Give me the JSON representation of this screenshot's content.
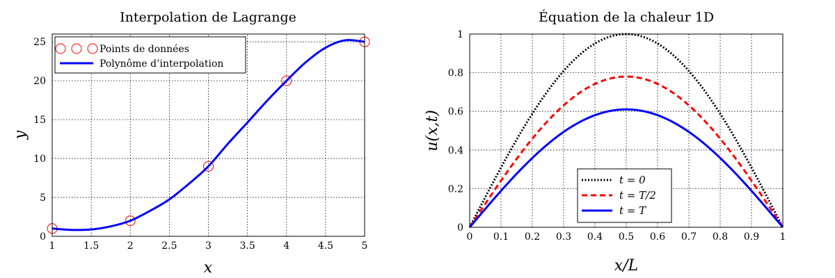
{
  "chart_data": [
    {
      "type": "line",
      "title": "Interpolation de Lagrange",
      "xlabel": "x",
      "ylabel": "y",
      "xlim": [
        1,
        5
      ],
      "ylim": [
        0,
        26
      ],
      "xticks": [
        "1",
        "1.5",
        "2",
        "2.5",
        "3",
        "3.5",
        "4",
        "4.5",
        "5"
      ],
      "yticks": [
        "0",
        "5",
        "10",
        "15",
        "20",
        "25"
      ],
      "grid": true,
      "legend_position": "top-left",
      "series": [
        {
          "name": "Points de données",
          "style": "markers",
          "marker": "circle",
          "color": "#ff0000",
          "x": [
            1,
            2,
            3,
            4,
            5
          ],
          "y": [
            1,
            2,
            9,
            20,
            25
          ]
        },
        {
          "name": "Polynôme d’interpolation",
          "style": "solid",
          "color": "#0000ff",
          "x": [
            1,
            1.25,
            1.5,
            1.75,
            2,
            2.25,
            2.5,
            2.75,
            3,
            3.25,
            3.5,
            3.75,
            4,
            4.25,
            4.5,
            4.75,
            5
          ],
          "y": [
            1,
            0.82,
            0.88,
            1.28,
            2,
            3.26,
            4.75,
            6.75,
            9,
            11.9,
            14.63,
            17.41,
            20,
            22.4,
            24.25,
            25.2,
            25
          ]
        }
      ]
    },
    {
      "type": "line",
      "title": "Équation de la chaleur 1D",
      "xlabel": "x/L",
      "ylabel": "u(x,t)",
      "xlim": [
        0,
        1
      ],
      "ylim": [
        0,
        1
      ],
      "xticks": [
        "0",
        "0.1",
        "0.2",
        "0.3",
        "0.4",
        "0.5",
        "0.6",
        "0.7",
        "0.8",
        "0.9",
        "1"
      ],
      "yticks": [
        "0",
        "0.2",
        "0.4",
        "0.6",
        "0.8",
        "1"
      ],
      "grid": true,
      "legend_position": "bottom-center",
      "series": [
        {
          "name": "t = 0",
          "style": "dotted",
          "color": "#000000",
          "function": "sin(pi x)",
          "amplitude": 1.0
        },
        {
          "name": "t = T/2",
          "style": "dashed",
          "color": "#ff0000",
          "function": "sin(pi x)",
          "amplitude": 0.78
        },
        {
          "name": "t = T",
          "style": "solid",
          "color": "#0000ff",
          "function": "sin(pi x)",
          "amplitude": 0.61
        }
      ]
    }
  ]
}
